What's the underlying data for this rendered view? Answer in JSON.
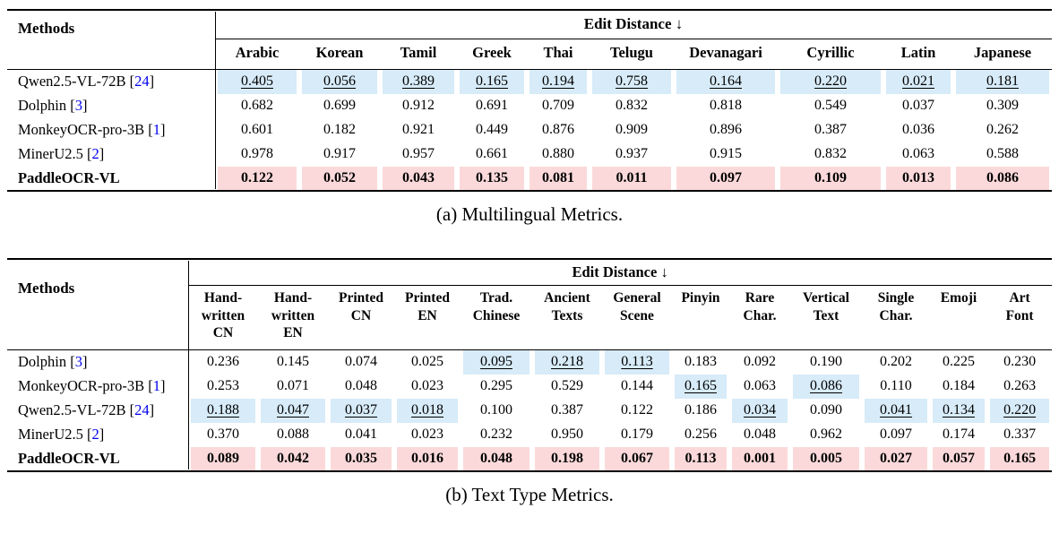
{
  "colors": {
    "highlight_blue": "#d7ebf8",
    "highlight_pink": "#fbd9da",
    "citation_blue": "#0000ee",
    "rule_black": "#000000"
  },
  "table_a": {
    "methods_header": "Methods",
    "group_header": "Edit Distance ↓",
    "caption": "(a) Multilingual Metrics.",
    "columns": [
      "Arabic",
      "Korean",
      "Tamil",
      "Greek",
      "Thai",
      "Telugu",
      "Devanagari",
      "Cyrillic",
      "Latin",
      "Japanese"
    ],
    "rows": [
      {
        "method": "Qwen2.5-VL-72B",
        "ref": "24",
        "hl": "blue",
        "hl_cells": [],
        "bold": false,
        "values": [
          "0.405",
          "0.056",
          "0.389",
          "0.165",
          "0.194",
          "0.758",
          "0.164",
          "0.220",
          "0.021",
          "0.181"
        ]
      },
      {
        "method": "Dolphin",
        "ref": "3",
        "hl": null,
        "hl_cells": [],
        "bold": false,
        "values": [
          "0.682",
          "0.699",
          "0.912",
          "0.691",
          "0.709",
          "0.832",
          "0.818",
          "0.549",
          "0.037",
          "0.309"
        ]
      },
      {
        "method": "MonkeyOCR-pro-3B",
        "ref": "1",
        "hl": null,
        "hl_cells": [],
        "bold": false,
        "values": [
          "0.601",
          "0.182",
          "0.921",
          "0.449",
          "0.876",
          "0.909",
          "0.896",
          "0.387",
          "0.036",
          "0.262"
        ]
      },
      {
        "method": "MinerU2.5",
        "ref": "2",
        "hl": null,
        "hl_cells": [],
        "bold": false,
        "values": [
          "0.978",
          "0.917",
          "0.957",
          "0.661",
          "0.880",
          "0.937",
          "0.915",
          "0.832",
          "0.063",
          "0.588"
        ]
      },
      {
        "method": "PaddleOCR-VL",
        "ref": null,
        "hl": "pink",
        "hl_cells": [],
        "bold": true,
        "values": [
          "0.122",
          "0.052",
          "0.043",
          "0.135",
          "0.081",
          "0.011",
          "0.097",
          "0.109",
          "0.013",
          "0.086"
        ]
      }
    ]
  },
  "table_b": {
    "methods_header": "Methods",
    "group_header": "Edit Distance ↓",
    "caption": "(b) Text Type Metrics.",
    "columns": [
      "Hand-\nwritten\nCN",
      "Hand-\nwritten\nEN",
      "Printed\nCN",
      "Printed\nEN",
      "Trad.\nChinese",
      "Ancient\nTexts",
      "General\nScene",
      "Pinyin",
      "Rare\nChar.",
      "Vertical\nText",
      "Single\nChar.",
      "Emoji",
      "Art\nFont"
    ],
    "rows": [
      {
        "method": "Dolphin",
        "ref": "3",
        "hl": null,
        "hl_cells": [
          4,
          5,
          6
        ],
        "bold": false,
        "values": [
          "0.236",
          "0.145",
          "0.074",
          "0.025",
          "0.095",
          "0.218",
          "0.113",
          "0.183",
          "0.092",
          "0.190",
          "0.202",
          "0.225",
          "0.230"
        ]
      },
      {
        "method": "MonkeyOCR-pro-3B",
        "ref": "1",
        "hl": null,
        "hl_cells": [
          7,
          9
        ],
        "bold": false,
        "values": [
          "0.253",
          "0.071",
          "0.048",
          "0.023",
          "0.295",
          "0.529",
          "0.144",
          "0.165",
          "0.063",
          "0.086",
          "0.110",
          "0.184",
          "0.263"
        ]
      },
      {
        "method": "Qwen2.5-VL-72B",
        "ref": "24",
        "hl": null,
        "hl_cells": [
          0,
          1,
          2,
          3,
          8,
          10,
          11,
          12
        ],
        "bold": false,
        "values": [
          "0.188",
          "0.047",
          "0.037",
          "0.018",
          "0.100",
          "0.387",
          "0.122",
          "0.186",
          "0.034",
          "0.090",
          "0.041",
          "0.134",
          "0.220"
        ]
      },
      {
        "method": "MinerU2.5",
        "ref": "2",
        "hl": null,
        "hl_cells": [],
        "bold": false,
        "values": [
          "0.370",
          "0.088",
          "0.041",
          "0.023",
          "0.232",
          "0.950",
          "0.179",
          "0.256",
          "0.048",
          "0.962",
          "0.097",
          "0.174",
          "0.337"
        ]
      },
      {
        "method": "PaddleOCR-VL",
        "ref": null,
        "hl": "pink",
        "hl_cells": [],
        "bold": true,
        "values": [
          "0.089",
          "0.042",
          "0.035",
          "0.016",
          "0.048",
          "0.198",
          "0.067",
          "0.113",
          "0.001",
          "0.005",
          "0.027",
          "0.057",
          "0.165"
        ]
      }
    ]
  }
}
